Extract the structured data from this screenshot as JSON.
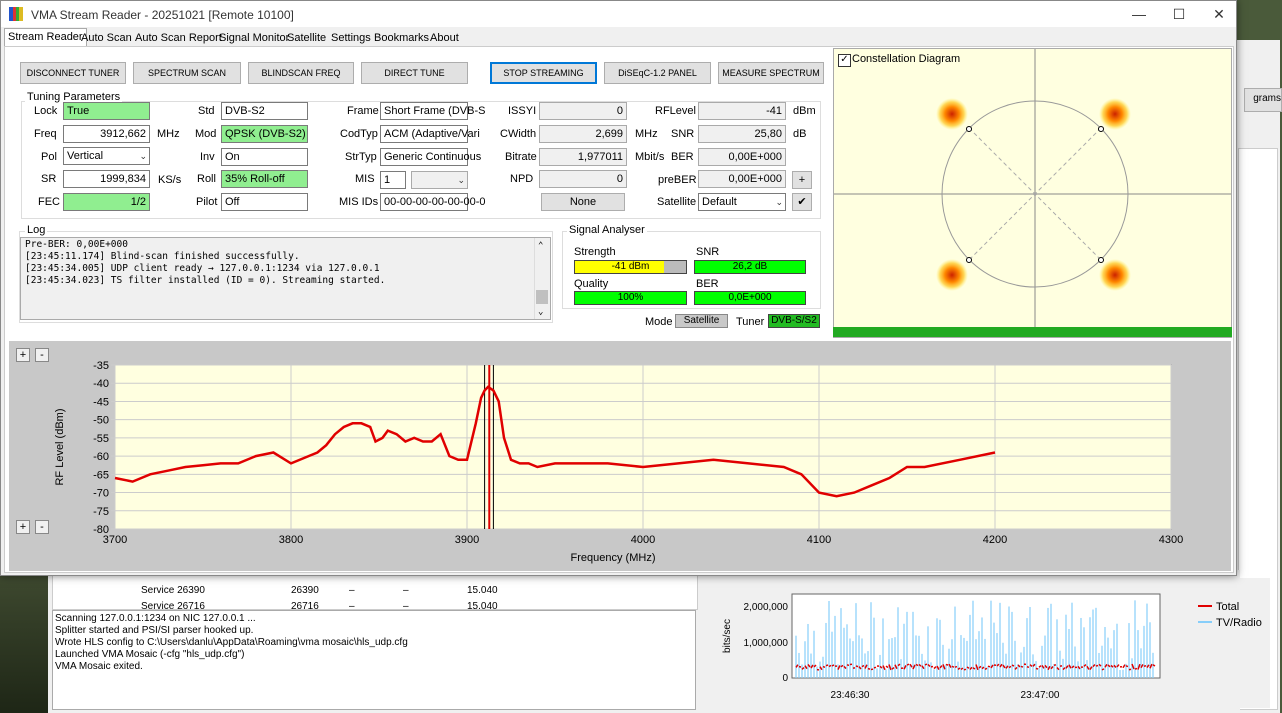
{
  "window": {
    "title": "VMA Stream Reader - 20251021  [Remote 10100]",
    "minimize": "—",
    "maximize": "☐",
    "close": "✕"
  },
  "tabs": [
    "Stream Reader",
    "Auto Scan",
    "Auto Scan Report",
    "Signal Monitor",
    "Satellite",
    "Settings",
    "Bookmarks",
    "About"
  ],
  "buttons": {
    "disconnect": "DISCONNECT TUNER",
    "spectrum_scan": "SPECTRUM SCAN",
    "blindscan": "BLINDSCAN FREQ",
    "direct_tune": "DIRECT TUNE",
    "stop_streaming": "STOP STREAMING",
    "diseqc": "DiSEqC-1.2 PANEL",
    "measure": "MEASURE SPECTRUM",
    "plus": "+",
    "apply": "✔"
  },
  "tuning": {
    "title": "Tuning Parameters",
    "lock_label": "Lock",
    "lock": "True",
    "freq_label": "Freq",
    "freq": "3912,662",
    "freq_unit": "MHz",
    "pol_label": "Pol",
    "pol": "Vertical",
    "sr_label": "SR",
    "sr": "1999,834",
    "sr_unit": "KS/s",
    "fec_label": "FEC",
    "fec": "1/2",
    "std_label": "Std",
    "std": "DVB-S2",
    "mod_label": "Mod",
    "mod": "QPSK (DVB-S2)",
    "inv_label": "Inv",
    "inv": "On",
    "roll_label": "Roll",
    "roll": "35% Roll-off",
    "pilot_label": "Pilot",
    "pilot": "Off",
    "frame_label": "Frame",
    "frame": "Short Frame (DVB-S",
    "codtyp_label": "CodTyp",
    "codtyp": "ACM (Adaptive/Vari",
    "strtyp_label": "StrTyp",
    "strtyp": "Generic Continuous",
    "mis_label": "MIS",
    "mis": "1",
    "misids_label": "MIS IDs",
    "misids": "00-00-00-00-00-00-0",
    "issyi_label": "ISSYI",
    "issyi": "0",
    "cwidth_label": "CWidth",
    "cwidth": "2,699",
    "cwidth_unit": "MHz",
    "bitrate_label": "Bitrate",
    "bitrate": "1,977011",
    "bitrate_unit": "Mbit/s",
    "npd_label": "NPD",
    "npd": "0",
    "none": "None",
    "rflevel_label": "RFLevel",
    "rflevel": "-41",
    "rflevel_unit": "dBm",
    "snr_label": "SNR",
    "snr": "25,80",
    "snr_unit": "dB",
    "ber_label": "BER",
    "ber": "0,00E+000",
    "preber_label": "preBER",
    "preber": "0,00E+000",
    "satellite_label": "Satellite",
    "satellite": "Default"
  },
  "log": {
    "title": "Log",
    "lines": [
      "Pre-BER: 0,00E+000",
      "",
      "[23:45:11.174] Blind-scan finished successfully.",
      "[23:45:34.005] UDP client ready → 127.0.0.1:1234 via 127.0.0.1",
      "[23:45:34.023] TS filter installed (ID = 0). Streaming started."
    ]
  },
  "signal": {
    "title": "Signal Analyser",
    "strength_label": "Strength",
    "strength": "-41 dBm",
    "strength_fill": 0.8,
    "snr_label": "SNR",
    "snr": "26,2 dB",
    "quality_label": "Quality",
    "quality": "100%",
    "ber_label": "BER",
    "ber": "0,0E+000",
    "mode_label": "Mode",
    "mode": "Satellite",
    "tuner_label": "Tuner",
    "tuner": "DVB-S/S2",
    "colors": {
      "strength": "#ffff00",
      "good": "#00ff00"
    }
  },
  "constellation": {
    "title": "Constellation Diagram",
    "checked": true
  },
  "spectrum": {
    "zoom_in": "+",
    "zoom_out": "-",
    "chart_data": {
      "type": "line",
      "xlabel": "Frequency (MHz)",
      "ylabel": "RF Level (dBm)",
      "xlim": [
        3700,
        4300
      ],
      "ylim": [
        -80,
        -35
      ],
      "xticks": [
        3700,
        3800,
        3900,
        4000,
        4100,
        4200,
        4300
      ],
      "yticks": [
        -35,
        -40,
        -45,
        -50,
        -55,
        -60,
        -65,
        -70,
        -75,
        -80
      ],
      "markers": [
        3910,
        3912.66,
        3915
      ],
      "series": [
        {
          "color": "#e00000",
          "x": [
            3700,
            3710,
            3720,
            3730,
            3740,
            3750,
            3760,
            3770,
            3780,
            3790,
            3800,
            3810,
            3815,
            3820,
            3825,
            3830,
            3835,
            3840,
            3845,
            3848,
            3852,
            3855,
            3860,
            3865,
            3870,
            3875,
            3880,
            3885,
            3890,
            3895,
            3900,
            3905,
            3908,
            3910,
            3912,
            3915,
            3918,
            3921,
            3925,
            3930,
            3935,
            3940,
            3950,
            3960,
            3980,
            4000,
            4020,
            4040,
            4060,
            4080,
            4090,
            4100,
            4110,
            4120,
            4130,
            4140,
            4150,
            4160,
            4180,
            4200
          ],
          "y": [
            -66,
            -67,
            -65,
            -64,
            -63,
            -62.5,
            -62,
            -62,
            -60,
            -59,
            -62,
            -60,
            -59,
            -57,
            -54,
            -52,
            -51,
            -51,
            -52,
            -56,
            -55,
            -53,
            -54,
            -56,
            -55,
            -56,
            -56,
            -54,
            -60,
            -61,
            -61,
            -51,
            -44,
            -42,
            -41,
            -42,
            -45,
            -55,
            -61,
            -62,
            -62,
            -63,
            -62,
            -62,
            -62,
            -63,
            -62,
            -61,
            -62,
            -63,
            -65,
            -70,
            -71,
            -70,
            -68,
            -66,
            -63,
            -63,
            -61,
            -59
          ]
        }
      ]
    }
  },
  "background": {
    "services": [
      {
        "name": "Service 26390",
        "id": "26390",
        "a": "–",
        "b": "–",
        "rate": "15.040"
      },
      {
        "name": "Service 26716",
        "id": "26716",
        "a": "–",
        "b": "–",
        "rate": "15.040"
      }
    ],
    "log": [
      "Scanning 127.0.0.1:1234 on NIC 127.0.0.1 ...",
      "Splitter started and PSI/SI parser hooked up.",
      "Wrote HLS config to C:\\Users\\danlu\\AppData\\Roaming\\vma mosaic\\hls_udp.cfg",
      "Launched VMA Mosaic (-cfg \"hls_udp.cfg\")",
      "VMA Mosaic exited."
    ],
    "right_label": "grams",
    "bitrate_chart": {
      "ylabel": "bits/sec",
      "yticks": [
        "2,000,000",
        "1,000,000",
        "0"
      ],
      "xticks": [
        "23:46:30",
        "23:47:00"
      ],
      "legend": [
        {
          "name": "Total",
          "color": "#e00000"
        },
        {
          "name": "TV/Radio",
          "color": "#87cefa"
        }
      ]
    }
  }
}
